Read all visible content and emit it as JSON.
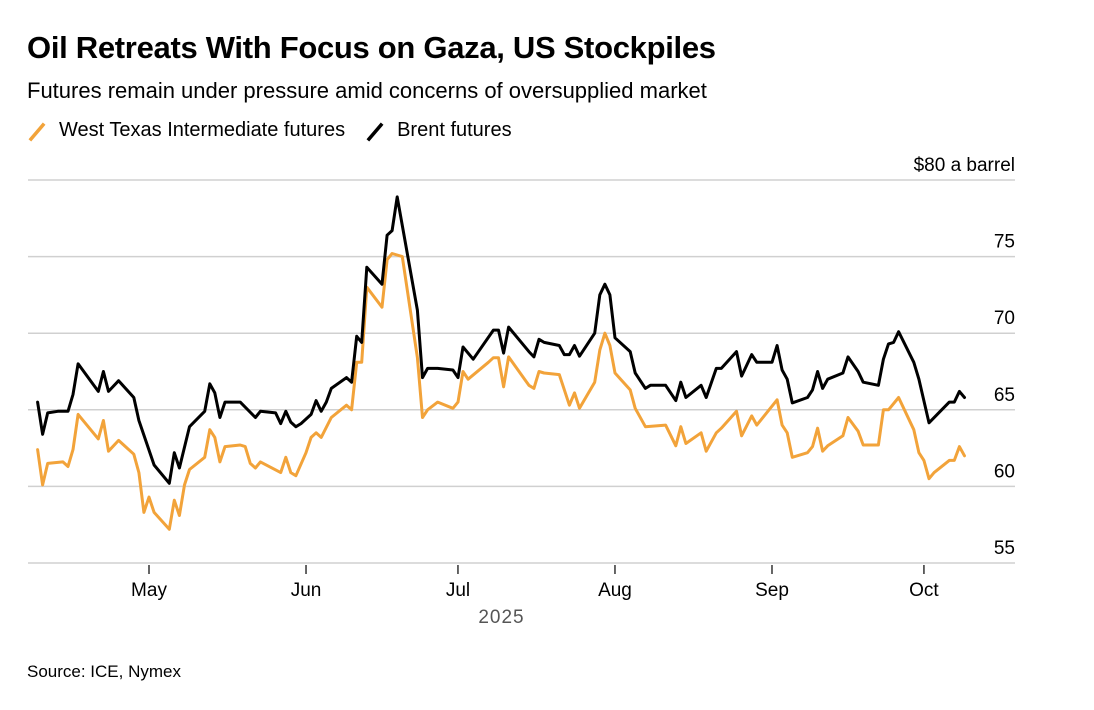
{
  "title": "Oil Retreats With Focus on Gaza, US Stockpiles",
  "subtitle": "Futures remain under pressure amid concerns of oversupplied market",
  "source": "Source: ICE, Nymex",
  "chart_data": {
    "type": "line",
    "title": "Oil Retreats With Focus on Gaza, US Stockpiles",
    "subtitle": "Futures remain under pressure amid concerns of oversupplied market",
    "y_unit_label": "$80 a barrel",
    "ylim": [
      55,
      80
    ],
    "y_ticks": [
      55,
      60,
      65,
      70,
      75,
      80
    ],
    "y_tick_labels": [
      "55",
      "60",
      "65",
      "70",
      "75",
      "$80 a barrel"
    ],
    "xlim": [
      "2025-04-08",
      "2025-10-12"
    ],
    "x_ticks": [
      "2025-05-01",
      "2025-06-01",
      "2025-07-01",
      "2025-08-01",
      "2025-09-01",
      "2025-10-01"
    ],
    "x_tick_labels": [
      "May",
      "Jun",
      "Jul",
      "Aug",
      "Sep",
      "Oct"
    ],
    "x_year_label": "2025",
    "grid": "horizontal",
    "legend_position": "top-left",
    "series": [
      {
        "name": "West Texas Intermediate futures",
        "color": "#F2A33A",
        "points": [
          [
            "2025-04-09",
            62.4
          ],
          [
            "2025-04-10",
            60.1
          ],
          [
            "2025-04-11",
            61.5
          ],
          [
            "2025-04-14",
            61.6
          ],
          [
            "2025-04-15",
            61.3
          ],
          [
            "2025-04-16",
            62.4
          ],
          [
            "2025-04-17",
            64.7
          ],
          [
            "2025-04-21",
            63.1
          ],
          [
            "2025-04-22",
            64.3
          ],
          [
            "2025-04-23",
            62.3
          ],
          [
            "2025-04-25",
            63.0
          ],
          [
            "2025-04-28",
            62.1
          ],
          [
            "2025-04-29",
            60.9
          ],
          [
            "2025-04-30",
            58.3
          ],
          [
            "2025-05-01",
            59.3
          ],
          [
            "2025-05-02",
            58.3
          ],
          [
            "2025-05-05",
            57.2
          ],
          [
            "2025-05-06",
            59.1
          ],
          [
            "2025-05-07",
            58.1
          ],
          [
            "2025-05-08",
            60.1
          ],
          [
            "2025-05-09",
            61.1
          ],
          [
            "2025-05-12",
            61.9
          ],
          [
            "2025-05-13",
            63.7
          ],
          [
            "2025-05-14",
            63.2
          ],
          [
            "2025-05-15",
            61.6
          ],
          [
            "2025-05-16",
            62.6
          ],
          [
            "2025-05-19",
            62.7
          ],
          [
            "2025-05-20",
            62.6
          ],
          [
            "2025-05-21",
            61.5
          ],
          [
            "2025-05-22",
            61.2
          ],
          [
            "2025-05-23",
            61.6
          ],
          [
            "2025-05-27",
            60.9
          ],
          [
            "2025-05-28",
            61.9
          ],
          [
            "2025-05-29",
            60.9
          ],
          [
            "2025-05-30",
            60.7
          ],
          [
            "2025-06-01",
            62.2
          ],
          [
            "2025-06-02",
            63.2
          ],
          [
            "2025-06-03",
            63.5
          ],
          [
            "2025-06-04",
            63.2
          ],
          [
            "2025-06-06",
            64.5
          ],
          [
            "2025-06-09",
            65.3
          ],
          [
            "2025-06-10",
            65.0
          ],
          [
            "2025-06-11",
            68.1
          ],
          [
            "2025-06-12",
            68.1
          ],
          [
            "2025-06-13",
            73.0
          ],
          [
            "2025-06-16",
            71.7
          ],
          [
            "2025-06-17",
            74.8
          ],
          [
            "2025-06-18",
            75.2
          ],
          [
            "2025-06-20",
            75.0
          ],
          [
            "2025-06-23",
            68.4
          ],
          [
            "2025-06-24",
            64.5
          ],
          [
            "2025-06-25",
            65.0
          ],
          [
            "2025-06-27",
            65.5
          ],
          [
            "2025-06-30",
            65.1
          ],
          [
            "2025-07-01",
            65.5
          ],
          [
            "2025-07-02",
            67.5
          ],
          [
            "2025-07-03",
            67.0
          ],
          [
            "2025-07-07",
            68.1
          ],
          [
            "2025-07-08",
            68.4
          ],
          [
            "2025-07-09",
            68.4
          ],
          [
            "2025-07-10",
            66.5
          ],
          [
            "2025-07-11",
            68.45
          ],
          [
            "2025-07-15",
            66.6
          ],
          [
            "2025-07-16",
            66.4
          ],
          [
            "2025-07-17",
            67.5
          ],
          [
            "2025-07-18",
            67.4
          ],
          [
            "2025-07-21",
            67.3
          ],
          [
            "2025-07-23",
            65.3
          ],
          [
            "2025-07-24",
            66.1
          ],
          [
            "2025-07-25",
            65.1
          ],
          [
            "2025-07-28",
            66.8
          ],
          [
            "2025-07-29",
            68.9
          ],
          [
            "2025-07-30",
            70.0
          ],
          [
            "2025-07-31",
            69.2
          ],
          [
            "2025-08-01",
            67.4
          ],
          [
            "2025-08-04",
            66.3
          ],
          [
            "2025-08-05",
            65.1
          ],
          [
            "2025-08-07",
            63.9
          ],
          [
            "2025-08-11",
            64.0
          ],
          [
            "2025-08-13",
            62.65
          ],
          [
            "2025-08-14",
            63.9
          ],
          [
            "2025-08-15",
            62.8
          ],
          [
            "2025-08-18",
            63.5
          ],
          [
            "2025-08-19",
            62.3
          ],
          [
            "2025-08-21",
            63.5
          ],
          [
            "2025-08-22",
            63.8
          ],
          [
            "2025-08-25",
            64.9
          ],
          [
            "2025-08-26",
            63.3
          ],
          [
            "2025-08-28",
            64.6
          ],
          [
            "2025-08-29",
            64.0
          ],
          [
            "2025-09-02",
            65.65
          ],
          [
            "2025-09-03",
            64.0
          ],
          [
            "2025-09-04",
            63.5
          ],
          [
            "2025-09-05",
            61.9
          ],
          [
            "2025-09-08",
            62.2
          ],
          [
            "2025-09-09",
            62.6
          ],
          [
            "2025-09-10",
            63.8
          ],
          [
            "2025-09-11",
            62.3
          ],
          [
            "2025-09-12",
            62.65
          ],
          [
            "2025-09-15",
            63.3
          ],
          [
            "2025-09-16",
            64.5
          ],
          [
            "2025-09-18",
            63.6
          ],
          [
            "2025-09-19",
            62.7
          ],
          [
            "2025-09-22",
            62.7
          ],
          [
            "2025-09-23",
            65.0
          ],
          [
            "2025-09-24",
            65.0
          ],
          [
            "2025-09-26",
            65.8
          ],
          [
            "2025-09-29",
            63.7
          ],
          [
            "2025-09-30",
            62.2
          ],
          [
            "2025-10-01",
            61.7
          ],
          [
            "2025-10-02",
            60.5
          ],
          [
            "2025-10-03",
            60.9
          ],
          [
            "2025-10-06",
            61.7
          ],
          [
            "2025-10-07",
            61.7
          ],
          [
            "2025-10-08",
            62.6
          ],
          [
            "2025-10-09",
            62.0
          ]
        ]
      },
      {
        "name": "Brent futures",
        "color": "#000000",
        "points": [
          [
            "2025-04-09",
            65.5
          ],
          [
            "2025-04-10",
            63.4
          ],
          [
            "2025-04-11",
            64.8
          ],
          [
            "2025-04-13",
            64.9
          ],
          [
            "2025-04-15",
            64.9
          ],
          [
            "2025-04-16",
            66.0
          ],
          [
            "2025-04-17",
            68.0
          ],
          [
            "2025-04-21",
            66.2
          ],
          [
            "2025-04-22",
            67.5
          ],
          [
            "2025-04-23",
            66.2
          ],
          [
            "2025-04-25",
            66.9
          ],
          [
            "2025-04-28",
            65.8
          ],
          [
            "2025-04-29",
            64.3
          ],
          [
            "2025-05-02",
            61.4
          ],
          [
            "2025-05-05",
            60.2
          ],
          [
            "2025-05-06",
            62.2
          ],
          [
            "2025-05-07",
            61.2
          ],
          [
            "2025-05-09",
            63.9
          ],
          [
            "2025-05-12",
            64.9
          ],
          [
            "2025-05-13",
            66.7
          ],
          [
            "2025-05-14",
            66.1
          ],
          [
            "2025-05-15",
            64.5
          ],
          [
            "2025-05-16",
            65.5
          ],
          [
            "2025-05-19",
            65.5
          ],
          [
            "2025-05-22",
            64.5
          ],
          [
            "2025-05-23",
            64.9
          ],
          [
            "2025-05-26",
            64.8
          ],
          [
            "2025-05-27",
            64.1
          ],
          [
            "2025-05-28",
            64.9
          ],
          [
            "2025-05-29",
            64.2
          ],
          [
            "2025-05-30",
            63.9
          ],
          [
            "2025-05-31",
            64.1
          ],
          [
            "2025-06-02",
            64.7
          ],
          [
            "2025-06-03",
            65.6
          ],
          [
            "2025-06-04",
            64.9
          ],
          [
            "2025-06-05",
            65.5
          ],
          [
            "2025-06-06",
            66.4
          ],
          [
            "2025-06-09",
            67.1
          ],
          [
            "2025-06-10",
            66.8
          ],
          [
            "2025-06-11",
            69.8
          ],
          [
            "2025-06-12",
            69.4
          ],
          [
            "2025-06-13",
            74.3
          ],
          [
            "2025-06-16",
            73.2
          ],
          [
            "2025-06-17",
            76.4
          ],
          [
            "2025-06-18",
            76.7
          ],
          [
            "2025-06-19",
            78.9
          ],
          [
            "2025-06-23",
            71.5
          ],
          [
            "2025-06-24",
            67.1
          ],
          [
            "2025-06-25",
            67.7
          ],
          [
            "2025-06-27",
            67.7
          ],
          [
            "2025-06-30",
            67.6
          ],
          [
            "2025-07-01",
            67.1
          ],
          [
            "2025-07-02",
            69.1
          ],
          [
            "2025-07-04",
            68.3
          ],
          [
            "2025-07-08",
            70.2
          ],
          [
            "2025-07-09",
            70.2
          ],
          [
            "2025-07-10",
            68.7
          ],
          [
            "2025-07-11",
            70.4
          ],
          [
            "2025-07-15",
            68.8
          ],
          [
            "2025-07-16",
            68.45
          ],
          [
            "2025-07-17",
            69.6
          ],
          [
            "2025-07-18",
            69.4
          ],
          [
            "2025-07-21",
            69.2
          ],
          [
            "2025-07-22",
            68.6
          ],
          [
            "2025-07-23",
            68.6
          ],
          [
            "2025-07-24",
            69.2
          ],
          [
            "2025-07-25",
            68.5
          ],
          [
            "2025-07-28",
            70.0
          ],
          [
            "2025-07-29",
            72.5
          ],
          [
            "2025-07-30",
            73.2
          ],
          [
            "2025-07-31",
            72.5
          ],
          [
            "2025-08-01",
            69.7
          ],
          [
            "2025-08-04",
            68.8
          ],
          [
            "2025-08-05",
            67.4
          ],
          [
            "2025-08-07",
            66.4
          ],
          [
            "2025-08-08",
            66.6
          ],
          [
            "2025-08-11",
            66.6
          ],
          [
            "2025-08-13",
            65.6
          ],
          [
            "2025-08-14",
            66.8
          ],
          [
            "2025-08-15",
            65.8
          ],
          [
            "2025-08-18",
            66.6
          ],
          [
            "2025-08-19",
            65.8
          ],
          [
            "2025-08-21",
            67.7
          ],
          [
            "2025-08-22",
            67.7
          ],
          [
            "2025-08-25",
            68.8
          ],
          [
            "2025-08-26",
            67.2
          ],
          [
            "2025-08-28",
            68.6
          ],
          [
            "2025-08-29",
            68.1
          ],
          [
            "2025-09-01",
            68.1
          ],
          [
            "2025-09-02",
            69.2
          ],
          [
            "2025-09-03",
            67.6
          ],
          [
            "2025-09-04",
            67.0
          ],
          [
            "2025-09-05",
            65.45
          ],
          [
            "2025-09-08",
            65.8
          ],
          [
            "2025-09-09",
            66.3
          ],
          [
            "2025-09-10",
            67.5
          ],
          [
            "2025-09-11",
            66.4
          ],
          [
            "2025-09-12",
            67.0
          ],
          [
            "2025-09-15",
            67.4
          ],
          [
            "2025-09-16",
            68.45
          ],
          [
            "2025-09-18",
            67.5
          ],
          [
            "2025-09-19",
            66.8
          ],
          [
            "2025-09-22",
            66.6
          ],
          [
            "2025-09-23",
            68.3
          ],
          [
            "2025-09-24",
            69.3
          ],
          [
            "2025-09-25",
            69.4
          ],
          [
            "2025-09-26",
            70.1
          ],
          [
            "2025-09-29",
            68.1
          ],
          [
            "2025-09-30",
            67.0
          ],
          [
            "2025-10-02",
            64.15
          ],
          [
            "2025-10-06",
            65.5
          ],
          [
            "2025-10-07",
            65.5
          ],
          [
            "2025-10-08",
            66.2
          ],
          [
            "2025-10-09",
            65.8
          ]
        ]
      }
    ]
  }
}
